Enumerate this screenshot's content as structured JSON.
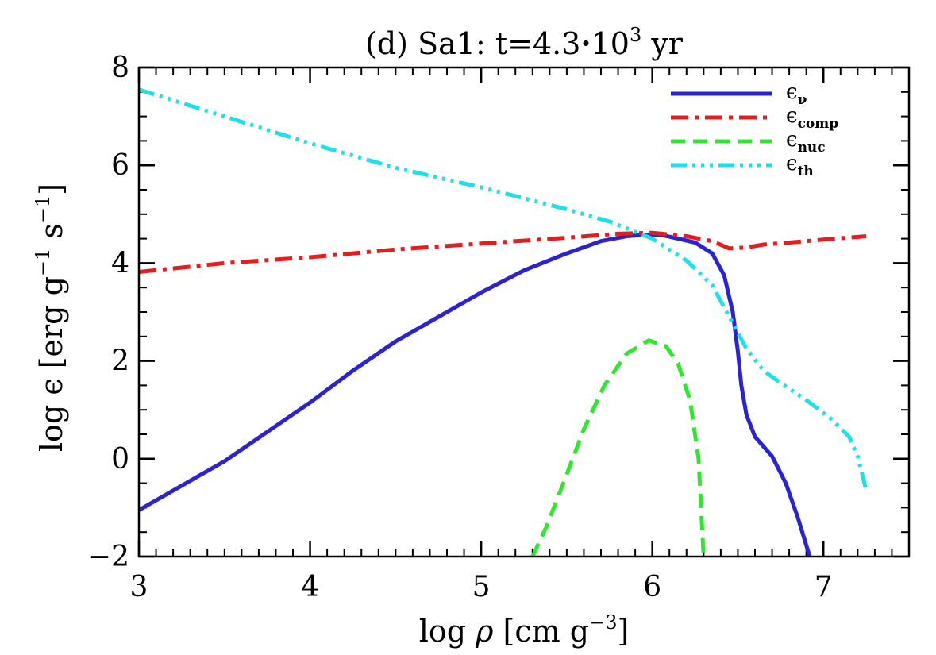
{
  "chart_data": {
    "type": "line",
    "title": {
      "prefix": "(d) Sa1: t=4.3",
      "dot": "·",
      "base": "10",
      "exponent": "3",
      "suffix": " yr"
    },
    "xlabel": {
      "prefix": "log ",
      "symbol": "ρ",
      "middle": " [cm g",
      "exponent": "−3",
      "suffix": "]"
    },
    "ylabel": {
      "prefix": "log ",
      "symbol": "ϵ",
      "middle": " [erg g",
      "exp1": "−1",
      "middle2": " s",
      "exp2": "−1",
      "suffix": "]"
    },
    "xlim": [
      3,
      7.5
    ],
    "ylim": [
      -2,
      8
    ],
    "x_ticks": [
      3,
      4,
      5,
      6,
      7
    ],
    "x_tick_labels": [
      "3",
      "4",
      "5",
      "6",
      "7"
    ],
    "y_ticks": [
      -2,
      0,
      2,
      4,
      6,
      8
    ],
    "y_tick_labels": [
      "−2",
      "0",
      "2",
      "4",
      "6",
      "8"
    ],
    "x_minor_step": 0.1,
    "y_minor_step": 0.5,
    "grid": false,
    "legend_position": "top-right",
    "series": [
      {
        "name": "ϵ",
        "sub": "ν",
        "color": "#2a22d4",
        "dash": "none",
        "width": 5,
        "points": [
          [
            3.0,
            -1.05
          ],
          [
            3.25,
            -0.55
          ],
          [
            3.5,
            -0.05
          ],
          [
            3.75,
            0.55
          ],
          [
            4.0,
            1.15
          ],
          [
            4.25,
            1.8
          ],
          [
            4.5,
            2.4
          ],
          [
            4.75,
            2.9
          ],
          [
            5.0,
            3.4
          ],
          [
            5.25,
            3.85
          ],
          [
            5.5,
            4.2
          ],
          [
            5.7,
            4.45
          ],
          [
            5.85,
            4.55
          ],
          [
            5.95,
            4.58
          ],
          [
            6.05,
            4.58
          ],
          [
            6.15,
            4.5
          ],
          [
            6.25,
            4.42
          ],
          [
            6.35,
            4.2
          ],
          [
            6.42,
            3.75
          ],
          [
            6.47,
            3.0
          ],
          [
            6.5,
            2.2
          ],
          [
            6.52,
            1.5
          ],
          [
            6.55,
            0.9
          ],
          [
            6.6,
            0.45
          ],
          [
            6.7,
            0.05
          ],
          [
            6.78,
            -0.5
          ],
          [
            6.85,
            -1.2
          ],
          [
            6.92,
            -2.0
          ]
        ]
      },
      {
        "name": "ϵ",
        "sub": "comp",
        "color": "#e81c1c",
        "dash": "22 8 5 8",
        "width": 5,
        "points": [
          [
            3.0,
            3.82
          ],
          [
            3.5,
            4.0
          ],
          [
            4.0,
            4.12
          ],
          [
            4.5,
            4.28
          ],
          [
            5.0,
            4.4
          ],
          [
            5.5,
            4.52
          ],
          [
            5.8,
            4.6
          ],
          [
            6.0,
            4.62
          ],
          [
            6.2,
            4.55
          ],
          [
            6.35,
            4.45
          ],
          [
            6.45,
            4.3
          ],
          [
            6.55,
            4.32
          ],
          [
            6.65,
            4.38
          ],
          [
            6.8,
            4.42
          ],
          [
            7.0,
            4.48
          ],
          [
            7.25,
            4.55
          ]
        ]
      },
      {
        "name": "ϵ",
        "sub": "nuc",
        "color": "#2ee82e",
        "dash": "18 10",
        "width": 5,
        "points": [
          [
            5.3,
            -2.0
          ],
          [
            5.38,
            -1.4
          ],
          [
            5.48,
            -0.5
          ],
          [
            5.6,
            0.6
          ],
          [
            5.72,
            1.5
          ],
          [
            5.85,
            2.15
          ],
          [
            5.98,
            2.42
          ],
          [
            6.08,
            2.3
          ],
          [
            6.15,
            1.95
          ],
          [
            6.22,
            1.2
          ],
          [
            6.27,
            0.0
          ],
          [
            6.3,
            -2.0
          ]
        ]
      },
      {
        "name": "ϵ",
        "sub": "th",
        "color": "#1ee0ea",
        "dash": "20 7 4 7 4 7 4 7",
        "width": 5,
        "points": [
          [
            3.0,
            7.55
          ],
          [
            3.5,
            7.0
          ],
          [
            4.0,
            6.45
          ],
          [
            4.5,
            5.95
          ],
          [
            5.0,
            5.55
          ],
          [
            5.5,
            5.1
          ],
          [
            5.75,
            4.85
          ],
          [
            6.0,
            4.5
          ],
          [
            6.2,
            4.05
          ],
          [
            6.35,
            3.55
          ],
          [
            6.45,
            2.9
          ],
          [
            6.55,
            2.25
          ],
          [
            6.65,
            1.8
          ],
          [
            6.75,
            1.55
          ],
          [
            6.9,
            1.2
          ],
          [
            7.05,
            0.8
          ],
          [
            7.15,
            0.45
          ],
          [
            7.2,
            0.05
          ],
          [
            7.25,
            -0.65
          ]
        ]
      }
    ]
  }
}
